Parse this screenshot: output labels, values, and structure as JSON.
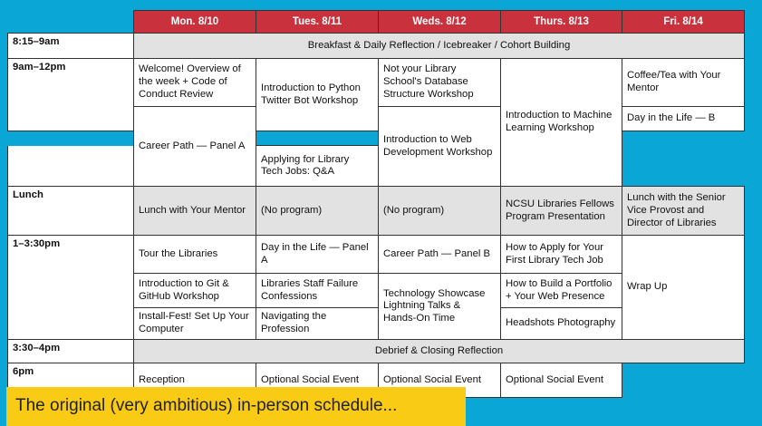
{
  "days": [
    "Mon. 8/10",
    "Tues. 8/11",
    "Weds. 8/12",
    "Thurs. 8/13",
    "Fri. 8/14"
  ],
  "times": {
    "breakfast": "8:15–9am",
    "morning": "9am–12pm",
    "lunch": "Lunch",
    "afternoon": "1–3:30pm",
    "debrief": "3:30–4pm",
    "evening": "6pm"
  },
  "breakfast_block": "Breakfast & Daily Reflection / Icebreaker / Cohort Building",
  "morning": {
    "mon_1": "Welcome! Overview of the week + Code of Conduct Review",
    "mon_2": "Career Path — Panel A",
    "tue": "Introduction to Python Twitter Bot Workshop",
    "wed_1": "Not your Library School's Database Structure Workshop",
    "wed_2": "Introduction to Web Development Workshop",
    "thu": "Introduction to Machine Learning Workshop",
    "fri_1": "Coffee/Tea with Your Mentor",
    "fri_2": "Day in the Life — B",
    "fri_3": "Applying for Library Tech Jobs: Q&A"
  },
  "lunch": {
    "mon": "Lunch with Your Mentor",
    "tue": "(No program)",
    "wed": "(No program)",
    "thu": "NCSU Libraries Fellows Program Presentation",
    "fri": "Lunch with the Senior Vice Provost and Director of Libraries"
  },
  "afternoon": {
    "mon_1": "Tour the Libraries",
    "mon_2": "Introduction to Git & GitHub Workshop",
    "mon_3": "Install-Fest! Set Up Your Computer",
    "tue_1": "Day in the Life — Panel A",
    "tue_2": "Libraries Staff Failure Confessions",
    "tue_3": "Navigating the Profession",
    "wed_1": "Career Path — Panel B",
    "wed_2": "Technology Showcase Lightning Talks & Hands-On Time",
    "thu_1": "How to Apply for Your First Library Tech Job",
    "thu_2": "How to Build a Portfolio + Your Web Presence",
    "thu_3": "Headshots Photography",
    "fri": "Wrap Up"
  },
  "debrief_block": "Debrief & Closing Reflection",
  "evening": {
    "mon": "Reception",
    "tue": "Optional Social Event",
    "wed": "Optional Social Event",
    "thu": "Optional Social Event"
  },
  "caption": "The original (very ambitious) in-person schedule...",
  "colors": {
    "background": "#0aa6d6",
    "header": "#c9323d",
    "caption_bg": "#f9cb14",
    "gray_cell": "#e2e2e2"
  }
}
